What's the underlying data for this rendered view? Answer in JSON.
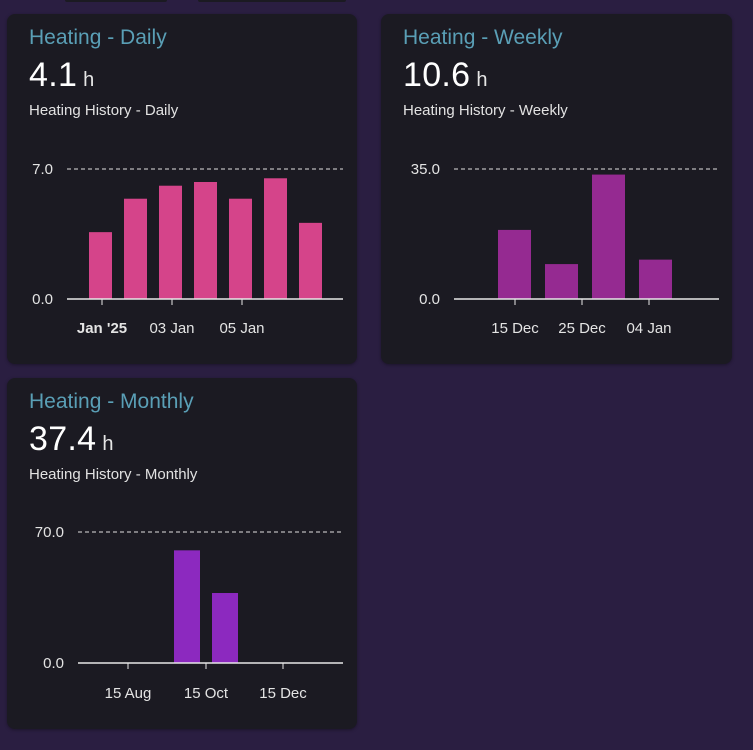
{
  "cards": [
    {
      "title": "Heating - Daily",
      "value": "4.1",
      "unit": "h",
      "subtitle": "Heating History - Daily",
      "chart_data": {
        "type": "bar",
        "title": "",
        "ylim": [
          0,
          7
        ],
        "y_ticks": [
          "7.0",
          "0.0"
        ],
        "grid": "dashed top line",
        "color": "#d5448a",
        "x_tick_labels": [
          "Jan '25",
          "03 Jan",
          "05 Jan"
        ],
        "values": [
          3.6,
          5.4,
          6.1,
          6.3,
          5.4,
          6.5,
          4.1
        ]
      }
    },
    {
      "title": "Heating - Weekly",
      "value": "10.6",
      "unit": "h",
      "subtitle": "Heating History - Weekly",
      "chart_data": {
        "type": "bar",
        "title": "",
        "ylim": [
          0,
          35
        ],
        "y_ticks": [
          "35.0",
          "0.0"
        ],
        "grid": "dashed top line",
        "color": "#952a91",
        "x_tick_labels": [
          "15 Dec",
          "25 Dec",
          "04 Jan"
        ],
        "values": [
          18.6,
          9.4,
          33.5,
          10.6
        ]
      }
    },
    {
      "title": "Heating - Monthly",
      "value": "37.4",
      "unit": "h",
      "subtitle": "Heating History - Monthly",
      "chart_data": {
        "type": "bar",
        "title": "",
        "ylim": [
          0,
          70
        ],
        "y_ticks": [
          "70.0",
          "0.0"
        ],
        "grid": "dashed top line",
        "color": "#8c29bf",
        "x_tick_labels": [
          "15 Aug",
          "15 Oct",
          "15 Dec"
        ],
        "values": [
          0,
          0,
          0,
          0,
          60.2,
          37.4
        ]
      }
    }
  ]
}
